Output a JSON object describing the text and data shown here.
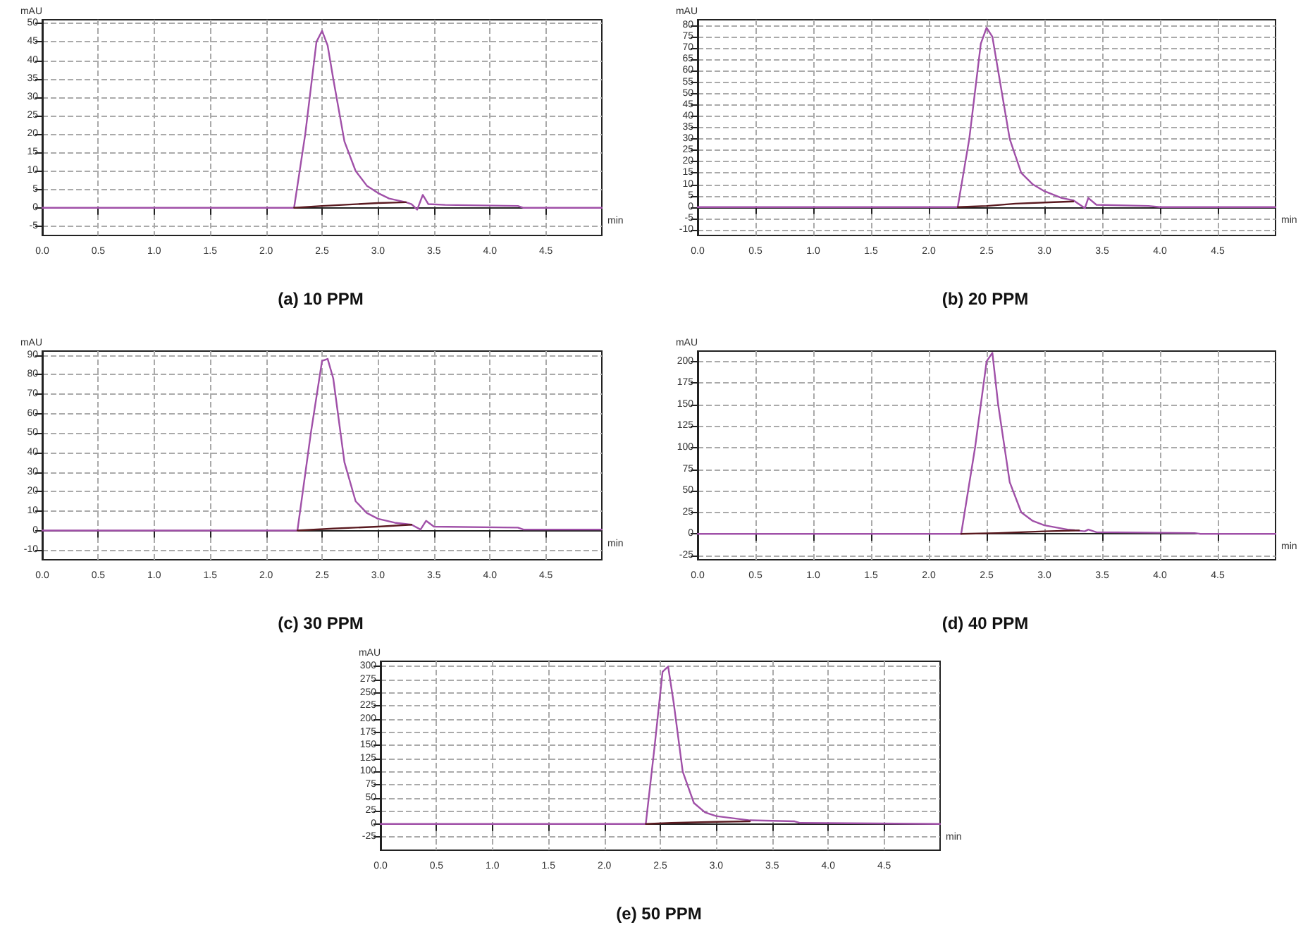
{
  "chart_data": [
    {
      "type": "line",
      "title": "(a) 10 PPM",
      "xlabel": "min",
      "ylabel": "mAU",
      "xlim": [
        0,
        5
      ],
      "xticks": [
        {
          "value": 0,
          "label": "0.0"
        },
        0.5,
        {
          "value": 1,
          "label": "1.0"
        },
        1.5,
        {
          "value": 2,
          "label": "2.0"
        },
        2.5,
        {
          "value": 3,
          "label": "3.0"
        },
        3.5,
        {
          "value": 4,
          "label": "4.0"
        },
        4.5
      ],
      "ylim": [
        -7.5,
        51
      ],
      "yticks": [
        -5,
        0,
        5,
        10,
        15,
        20,
        25,
        30,
        35,
        40,
        45,
        50
      ],
      "grid": true,
      "marker": "none",
      "line_style": "solid",
      "series": [
        {
          "color": "#a050a8",
          "x": [
            0,
            2.25,
            2.35,
            2.45,
            2.5,
            2.55,
            2.6,
            2.7,
            2.8,
            2.9,
            3.0,
            3.1,
            3.25,
            3.3,
            3.35,
            3.4,
            3.45,
            3.6,
            4.25,
            4.3,
            5
          ],
          "values": [
            0,
            0,
            20,
            45,
            48,
            44,
            35,
            18,
            10,
            6,
            4,
            2.5,
            1.5,
            1,
            -0.5,
            3.5,
            1,
            0.8,
            0.5,
            0,
            0
          ]
        },
        {
          "color": "#5a1a20",
          "x": [
            2.25,
            2.5,
            3.0,
            3.25
          ],
          "values": [
            0,
            0.5,
            1.3,
            1.5
          ]
        }
      ]
    },
    {
      "type": "line",
      "title": "(b) 20 PPM",
      "xlabel": "min",
      "ylabel": "mAU",
      "xlim": [
        0,
        5
      ],
      "xticks": [
        {
          "value": 0,
          "label": "0.0"
        },
        0.5,
        {
          "value": 1,
          "label": "1.0"
        },
        1.5,
        {
          "value": 2,
          "label": "2.0"
        },
        2.5,
        {
          "value": 3,
          "label": "3.0"
        },
        3.5,
        {
          "value": 4,
          "label": "4.0"
        },
        4.5
      ],
      "ylim": [
        -12.5,
        82.5
      ],
      "yticks": [
        -10,
        -5,
        0,
        5,
        10,
        15,
        20,
        25,
        30,
        35,
        40,
        45,
        50,
        55,
        60,
        65,
        70,
        75,
        80
      ],
      "grid": true,
      "marker": "none",
      "line_style": "solid",
      "series": [
        {
          "color": "#a050a8",
          "x": [
            0,
            2.25,
            2.35,
            2.45,
            2.5,
            2.55,
            2.6,
            2.7,
            2.8,
            2.9,
            3.0,
            3.15,
            3.25,
            3.35,
            3.38,
            3.45,
            3.9,
            4.0,
            5
          ],
          "values": [
            0,
            0,
            30,
            72,
            79,
            75,
            60,
            30,
            15,
            10,
            7,
            4,
            3,
            -0.5,
            4,
            1,
            0.5,
            0,
            0
          ]
        },
        {
          "color": "#5a1a20",
          "x": [
            2.25,
            2.5,
            2.75,
            3.0,
            3.25
          ],
          "values": [
            0,
            0.5,
            1.5,
            2,
            2.5
          ]
        }
      ]
    },
    {
      "type": "line",
      "title": "(c) 30 PPM",
      "xlabel": "min",
      "ylabel": "mAU",
      "xlim": [
        0,
        5
      ],
      "xticks": [
        {
          "value": 0,
          "label": "0.0"
        },
        0.5,
        {
          "value": 1,
          "label": "1.0"
        },
        1.5,
        {
          "value": 2,
          "label": "2.0"
        },
        2.5,
        {
          "value": 3,
          "label": "3.0"
        },
        3.5,
        {
          "value": 4,
          "label": "4.0"
        },
        4.5
      ],
      "ylim": [
        -15,
        92
      ],
      "yticks": [
        -10,
        0,
        10,
        20,
        30,
        40,
        50,
        60,
        70,
        80,
        90
      ],
      "grid": true,
      "marker": "none",
      "line_style": "solid",
      "series": [
        {
          "color": "#a050a8",
          "x": [
            0,
            2.28,
            2.4,
            2.5,
            2.55,
            2.6,
            2.7,
            2.8,
            2.9,
            3.0,
            3.15,
            3.3,
            3.38,
            3.43,
            3.5,
            4.25,
            4.3,
            5
          ],
          "values": [
            0,
            0,
            50,
            87,
            88,
            78,
            35,
            15,
            9,
            6,
            4,
            3,
            0.5,
            5,
            2,
            1.5,
            0.5,
            0.5
          ]
        },
        {
          "color": "#5a1a20",
          "x": [
            2.28,
            2.6,
            3.0,
            3.3
          ],
          "values": [
            0,
            1,
            2,
            3
          ]
        }
      ]
    },
    {
      "type": "line",
      "title": "(d) 40 PPM",
      "xlabel": "min",
      "ylabel": "mAU",
      "xlim": [
        0,
        5
      ],
      "xticks": [
        {
          "value": 0,
          "label": "0.0"
        },
        0.5,
        {
          "value": 1,
          "label": "1.0"
        },
        1.5,
        {
          "value": 2,
          "label": "2.0"
        },
        2.5,
        {
          "value": 3,
          "label": "3.0"
        },
        3.5,
        {
          "value": 4,
          "label": "4.0"
        },
        4.5
      ],
      "ylim": [
        -30,
        212
      ],
      "yticks": [
        -25,
        0,
        25,
        50,
        75,
        100,
        125,
        150,
        175,
        200
      ],
      "grid": true,
      "marker": "none",
      "line_style": "solid",
      "series": [
        {
          "color": "#a050a8",
          "x": [
            0,
            2.28,
            2.4,
            2.5,
            2.55,
            2.6,
            2.7,
            2.8,
            2.9,
            3.0,
            3.2,
            3.35,
            3.38,
            3.45,
            4.3,
            4.35,
            5
          ],
          "values": [
            0,
            0,
            100,
            200,
            210,
            150,
            60,
            25,
            15,
            10,
            5,
            3,
            5,
            2,
            1,
            0,
            0
          ]
        },
        {
          "color": "#5a1a20",
          "x": [
            2.28,
            2.6,
            3.0,
            3.3
          ],
          "values": [
            0,
            1,
            3,
            4
          ]
        }
      ]
    },
    {
      "type": "line",
      "title": "(e) 50 PPM",
      "xlabel": "min",
      "ylabel": "mAU",
      "xlim": [
        0,
        5
      ],
      "xticks": [
        {
          "value": 0,
          "label": "0.0"
        },
        0.5,
        {
          "value": 1,
          "label": "1.0"
        },
        1.5,
        {
          "value": 2,
          "label": "2.0"
        },
        2.5,
        {
          "value": 3,
          "label": "3.0"
        },
        3.5,
        {
          "value": 4,
          "label": "4.0"
        },
        4.5
      ],
      "ylim": [
        -50,
        310
      ],
      "yticks": [
        -25,
        0,
        25,
        50,
        75,
        100,
        125,
        150,
        175,
        200,
        225,
        250,
        275,
        300
      ],
      "grid": true,
      "marker": "none",
      "line_style": "solid",
      "series": [
        {
          "color": "#a050a8",
          "x": [
            0,
            2.37,
            2.45,
            2.52,
            2.57,
            2.62,
            2.7,
            2.8,
            2.9,
            3.0,
            3.3,
            3.7,
            3.75,
            5
          ],
          "values": [
            0,
            0,
            150,
            290,
            300,
            230,
            100,
            40,
            22,
            15,
            7,
            5,
            2,
            0
          ]
        },
        {
          "color": "#5a1a20",
          "x": [
            2.37,
            2.6,
            3.0,
            3.3
          ],
          "values": [
            0,
            2,
            4,
            5
          ]
        }
      ]
    }
  ]
}
